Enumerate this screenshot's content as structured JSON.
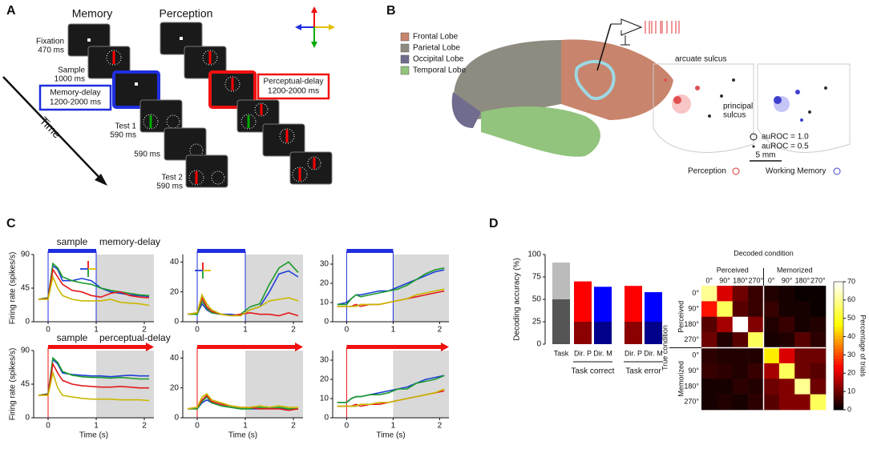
{
  "panel_a": {
    "label": "A",
    "memory": "Memory",
    "perception": "Perception",
    "time": "Time",
    "fixation": [
      "Fixation",
      "470 ms"
    ],
    "sample": [
      "Sample",
      "1000 ms"
    ],
    "memory_delay": [
      "Memory-delay",
      "1200-2000 ms"
    ],
    "test1": [
      "Test 1",
      "590 ms"
    ],
    "gap": "590 ms",
    "test2": [
      "Test 2",
      "590 ms"
    ],
    "perceptual_delay": [
      "Perceptual-delay",
      "1200-2000 ms"
    ]
  },
  "panel_b": {
    "label": "B",
    "lobes": [
      {
        "name": "Frontal Lobe",
        "color": "#c8846c"
      },
      {
        "name": "Parietal Lobe",
        "color": "#8e8b80"
      },
      {
        "name": "Occipital Lobe",
        "color": "#6f6c8e"
      },
      {
        "name": "Temporal Lobe",
        "color": "#93c47d"
      }
    ],
    "arcuate": "arcuate sulcus",
    "principal": [
      "principal",
      "sulcus"
    ],
    "auroc_high": "auROC = 1.0",
    "auroc_low": "auROC = 0.5",
    "scale": "5 mm",
    "perception": "Perception",
    "memory": "Working Memory"
  },
  "panel_c": {
    "label": "C",
    "ylabel": "Firing rate (spikes/s)",
    "xlabel": "Time (s)"
  },
  "panel_d": {
    "label": "D"
  },
  "chart_data": [
    {
      "type": "line",
      "labels": [
        "sample",
        "memory-delay"
      ],
      "stimulus": {
        "color": "#1f2fe0",
        "span": [
          0,
          1
        ]
      },
      "shade": [
        1,
        2.2
      ],
      "xlim": [
        -0.3,
        2.2
      ],
      "xticks": [
        0,
        1,
        2
      ],
      "ylim": [
        0,
        90
      ],
      "yticks": [
        0,
        45,
        90
      ],
      "x": [
        -0.2,
        0,
        0.1,
        0.2,
        0.3,
        0.5,
        0.7,
        0.9,
        1.1,
        1.3,
        1.5,
        1.7,
        1.9,
        2.1
      ],
      "series": [
        {
          "color": "#1f3fd8",
          "values": [
            30,
            32,
            75,
            70,
            55,
            55,
            58,
            55,
            45,
            40,
            38,
            36,
            35,
            34
          ]
        },
        {
          "color": "#1a9a2a",
          "values": [
            30,
            32,
            78,
            72,
            60,
            55,
            52,
            50,
            45,
            42,
            40,
            38,
            36,
            35
          ]
        },
        {
          "color": "#e41a1c",
          "values": [
            30,
            31,
            70,
            60,
            50,
            42,
            40,
            35,
            33,
            38,
            40,
            35,
            33,
            32
          ]
        },
        {
          "color": "#c9b800",
          "values": [
            30,
            30,
            60,
            45,
            35,
            30,
            28,
            28,
            28,
            30,
            26,
            25,
            24,
            22
          ]
        }
      ]
    },
    {
      "type": "line",
      "stimulus": {
        "color": "#1f2fe0",
        "span": [
          0,
          1
        ]
      },
      "shade": [
        1,
        2.2
      ],
      "xlim": [
        -0.3,
        2.2
      ],
      "xticks": [
        0,
        1,
        2
      ],
      "ylim": [
        0,
        45
      ],
      "yticks": [
        0,
        20,
        40
      ],
      "x": [
        -0.2,
        0,
        0.1,
        0.2,
        0.3,
        0.5,
        0.7,
        0.9,
        1.1,
        1.3,
        1.5,
        1.7,
        1.9,
        2.1
      ],
      "series": [
        {
          "color": "#1f3fd8",
          "values": [
            5,
            5,
            12,
            8,
            6,
            5,
            5,
            4,
            8,
            10,
            20,
            32,
            34,
            30
          ]
        },
        {
          "color": "#1a9a2a",
          "values": [
            5,
            5,
            14,
            9,
            6,
            5,
            4,
            5,
            10,
            12,
            25,
            36,
            40,
            33
          ]
        },
        {
          "color": "#e41a1c",
          "values": [
            5,
            6,
            16,
            10,
            7,
            5,
            4,
            5,
            6,
            5,
            5,
            4,
            6,
            4
          ]
        },
        {
          "color": "#c9b800",
          "values": [
            5,
            6,
            18,
            12,
            8,
            5,
            4,
            4,
            8,
            10,
            14,
            15,
            16,
            14
          ]
        }
      ]
    },
    {
      "type": "line",
      "stimulus": {
        "color": "#1f2fe0",
        "span": [
          0,
          1
        ]
      },
      "shade": [
        1,
        2.2
      ],
      "xlim": [
        -0.3,
        2.2
      ],
      "xticks": [
        0,
        1,
        2
      ],
      "ylim": [
        0,
        35
      ],
      "yticks": [
        0,
        10,
        20,
        30
      ],
      "x": [
        -0.2,
        0,
        0.1,
        0.2,
        0.3,
        0.5,
        0.7,
        0.9,
        1.1,
        1.3,
        1.5,
        1.7,
        1.9,
        2.1
      ],
      "series": [
        {
          "color": "#1f3fd8",
          "values": [
            9,
            10,
            12,
            14,
            14,
            15,
            16,
            16,
            18,
            20,
            22,
            24,
            26,
            27
          ]
        },
        {
          "color": "#1a9a2a",
          "values": [
            9,
            9,
            12,
            14,
            13,
            14,
            15,
            16,
            17,
            19,
            22,
            25,
            27,
            28
          ]
        },
        {
          "color": "#e41a1c",
          "values": [
            8,
            8,
            8,
            9,
            8,
            9,
            9,
            10,
            11,
            12,
            13,
            14,
            15,
            16
          ]
        },
        {
          "color": "#c9b800",
          "values": [
            8,
            8,
            8,
            8,
            9,
            9,
            9,
            10,
            11,
            12,
            14,
            15,
            16,
            17
          ]
        }
      ]
    },
    {
      "type": "line",
      "labels": [
        "sample",
        "perceptual-delay"
      ],
      "stimulus": {
        "color": "#f01010",
        "span": [
          0,
          2.2
        ],
        "arrow": true
      },
      "shade": [
        1,
        2.2
      ],
      "xlim": [
        -0.3,
        2.2
      ],
      "xticks": [
        0,
        1,
        2
      ],
      "ylim": [
        0,
        90
      ],
      "yticks": [
        0,
        45,
        90
      ],
      "x": [
        -0.2,
        0,
        0.1,
        0.2,
        0.3,
        0.5,
        0.7,
        0.9,
        1.1,
        1.3,
        1.5,
        1.7,
        1.9,
        2.1
      ],
      "series": [
        {
          "color": "#1f3fd8",
          "values": [
            30,
            32,
            78,
            72,
            60,
            58,
            57,
            56,
            56,
            55,
            56,
            57,
            56,
            56
          ]
        },
        {
          "color": "#1a9a2a",
          "values": [
            30,
            32,
            80,
            74,
            62,
            57,
            55,
            54,
            54,
            53,
            54,
            53,
            52,
            52
          ]
        },
        {
          "color": "#e41a1c",
          "values": [
            30,
            31,
            72,
            60,
            50,
            45,
            43,
            42,
            41,
            41,
            42,
            41,
            40,
            40
          ]
        },
        {
          "color": "#c9b800",
          "values": [
            30,
            30,
            60,
            40,
            30,
            28,
            26,
            25,
            25,
            25,
            24,
            24,
            24,
            23
          ]
        }
      ]
    },
    {
      "type": "line",
      "stimulus": {
        "color": "#f01010",
        "span": [
          0,
          2.2
        ],
        "arrow": true
      },
      "shade": [
        1,
        2.2
      ],
      "xlim": [
        -0.3,
        2.2
      ],
      "xticks": [
        0,
        1,
        2
      ],
      "ylim": [
        0,
        45
      ],
      "yticks": [
        0,
        20,
        40
      ],
      "x": [
        -0.2,
        0,
        0.1,
        0.2,
        0.3,
        0.5,
        0.7,
        0.9,
        1.1,
        1.3,
        1.5,
        1.7,
        1.9,
        2.1
      ],
      "series": [
        {
          "color": "#1f3fd8",
          "values": [
            6,
            6,
            10,
            12,
            10,
            8,
            7,
            6,
            6,
            6,
            7,
            6,
            6,
            6
          ]
        },
        {
          "color": "#1a9a2a",
          "values": [
            6,
            6,
            11,
            14,
            10,
            8,
            7,
            6,
            6,
            7,
            6,
            7,
            6,
            6
          ]
        },
        {
          "color": "#e41a1c",
          "values": [
            6,
            7,
            12,
            15,
            11,
            9,
            8,
            7,
            7,
            6,
            6,
            6,
            5,
            6
          ]
        },
        {
          "color": "#c9b800",
          "values": [
            6,
            7,
            14,
            16,
            12,
            10,
            8,
            7,
            7,
            8,
            7,
            8,
            7,
            7
          ]
        }
      ]
    },
    {
      "type": "line",
      "stimulus": {
        "color": "#f01010",
        "span": [
          0,
          2.2
        ],
        "arrow": true
      },
      "shade": [
        1,
        2.2
      ],
      "xlim": [
        -0.3,
        2.2
      ],
      "xticks": [
        0,
        1,
        2
      ],
      "ylim": [
        0,
        35
      ],
      "yticks": [
        0,
        10,
        20,
        30
      ],
      "x": [
        -0.2,
        0,
        0.1,
        0.2,
        0.3,
        0.5,
        0.7,
        0.9,
        1.1,
        1.3,
        1.5,
        1.7,
        1.9,
        2.1
      ],
      "series": [
        {
          "color": "#1f3fd8",
          "values": [
            8,
            8,
            10,
            11,
            11,
            12,
            13,
            14,
            15,
            16,
            18,
            20,
            21,
            22
          ]
        },
        {
          "color": "#1a9a2a",
          "values": [
            8,
            8,
            10,
            11,
            11,
            12,
            12,
            13,
            15,
            15,
            18,
            19,
            20,
            22
          ]
        },
        {
          "color": "#e41a1c",
          "values": [
            6,
            6,
            6,
            7,
            6,
            7,
            7,
            8,
            9,
            10,
            11,
            12,
            13,
            14
          ]
        },
        {
          "color": "#c9b800",
          "values": [
            6,
            6,
            6,
            6,
            7,
            7,
            8,
            8,
            9,
            10,
            11,
            12,
            13,
            15
          ]
        }
      ]
    },
    {
      "type": "bar",
      "ylabel": "Decoding accuracy (%)",
      "categories": [
        "Task",
        "Dir. P",
        "Dir. M",
        "Dir. P",
        "Dir. M"
      ],
      "groups": [
        "Task correct",
        "Task error"
      ],
      "ylim": [
        0,
        100
      ],
      "yticks": [
        0,
        25,
        50,
        75,
        100
      ],
      "series": [
        {
          "colors": [
            "#555555",
            "#8b0000",
            "#00008b",
            "#8b0000",
            "#00008b"
          ],
          "values": [
            50,
            25,
            25,
            25,
            25
          ]
        },
        {
          "colors": [
            "#bbbbbb",
            "#ff0000",
            "#0000ff",
            "#ff0000",
            "#0000ff"
          ],
          "values": [
            41,
            45,
            39,
            40,
            33
          ]
        }
      ]
    },
    {
      "type": "heatmap",
      "title": "Decoded condition",
      "col_groups": [
        "Perceived",
        "Memorized"
      ],
      "row_groups": [
        "Perceived",
        "Memorized"
      ],
      "ylabel": "True condition",
      "colorbar_label": "Percentage of trials",
      "categories": [
        "0°",
        "90°",
        "180°",
        "270°",
        "0°",
        "90°",
        "180°",
        "270°"
      ],
      "clim": [
        0,
        70
      ],
      "cticks": [
        0,
        10,
        20,
        30,
        40,
        50,
        60,
        70
      ],
      "values": [
        [
          60,
          20,
          10,
          5,
          3,
          2,
          1,
          1
        ],
        [
          25,
          55,
          8,
          5,
          5,
          2,
          2,
          1
        ],
        [
          8,
          15,
          72,
          12,
          3,
          5,
          2,
          3
        ],
        [
          10,
          3,
          8,
          55,
          2,
          3,
          8,
          4
        ],
        [
          4,
          3,
          3,
          3,
          45,
          20,
          10,
          10
        ],
        [
          5,
          4,
          3,
          5,
          15,
          55,
          10,
          8
        ],
        [
          2,
          2,
          4,
          3,
          10,
          12,
          60,
          10
        ],
        [
          2,
          3,
          2,
          4,
          8,
          12,
          12,
          55
        ]
      ]
    }
  ]
}
